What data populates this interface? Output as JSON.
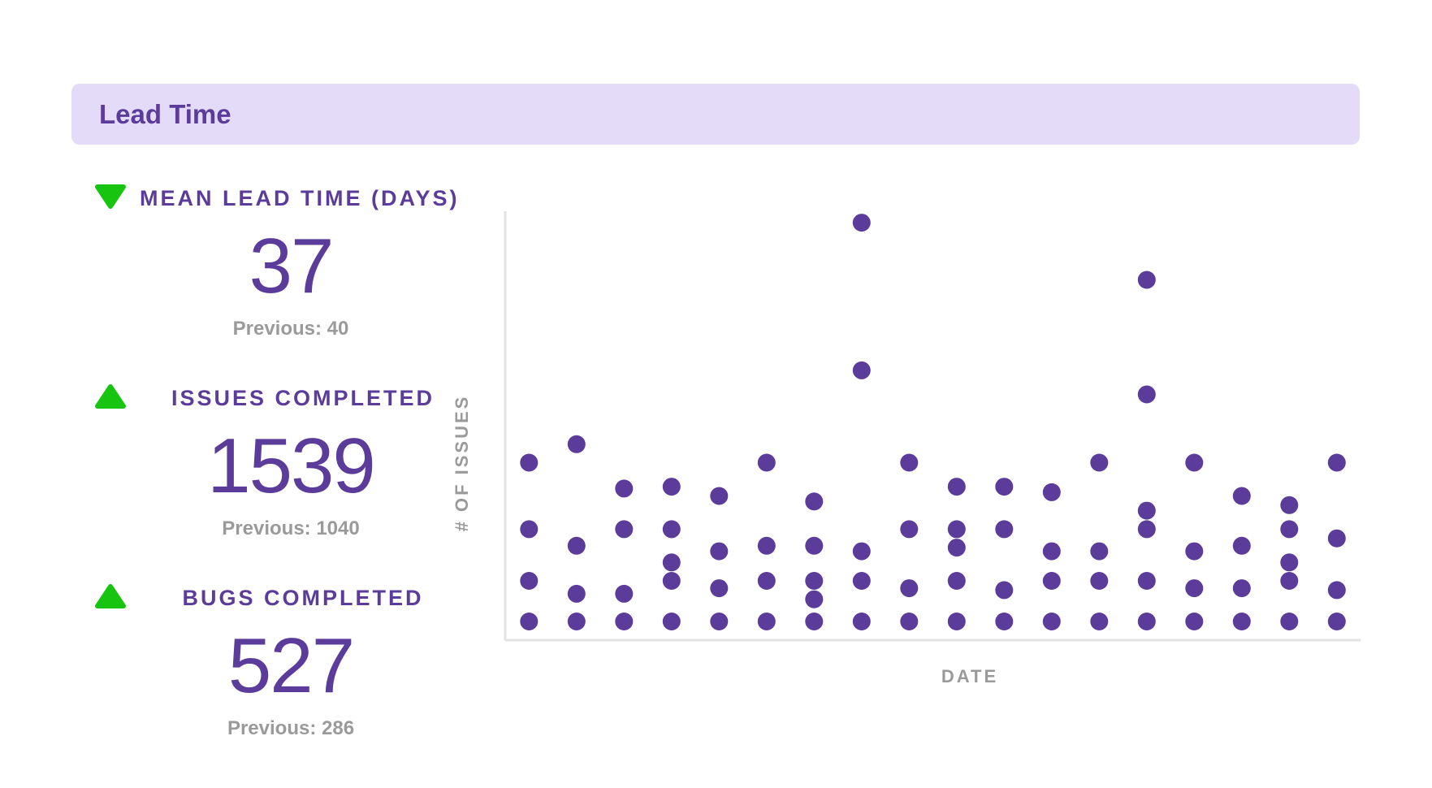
{
  "header": {
    "title": "Lead Time"
  },
  "colors": {
    "accent": "#5b3c9a",
    "header_bg": "#e4dbf8",
    "trend_good": "#17c40f",
    "muted": "#9a9a9a",
    "point": "#5b3c9a"
  },
  "metrics": [
    {
      "label": "MEAN LEAD TIME (DAYS)",
      "value": "37",
      "previous": "Previous: 40",
      "trend": "down",
      "icon": "triangle-down-icon"
    },
    {
      "label": "ISSUES COMPLETED",
      "value": "1539",
      "previous": "Previous: 1040",
      "trend": "up",
      "icon": "triangle-up-icon"
    },
    {
      "label": "BUGS COMPLETED",
      "value": "527",
      "previous": "Previous: 286",
      "trend": "up",
      "icon": "triangle-up-icon"
    }
  ],
  "chart_data": {
    "type": "scatter",
    "title": "",
    "xlabel": "DATE",
    "ylabel": "# OF ISSUES",
    "xlim": [
      0.5,
      18.5
    ],
    "ylim": [
      0,
      22
    ],
    "grid": false,
    "x_tick_labels": [],
    "y_tick_labels": [],
    "points": [
      {
        "x": 1,
        "y": 0
      },
      {
        "x": 1,
        "y": 2.2
      },
      {
        "x": 1,
        "y": 5
      },
      {
        "x": 1,
        "y": 8.6
      },
      {
        "x": 2,
        "y": 0
      },
      {
        "x": 2,
        "y": 1.5
      },
      {
        "x": 2,
        "y": 4.1
      },
      {
        "x": 2,
        "y": 9.6
      },
      {
        "x": 3,
        "y": 0
      },
      {
        "x": 3,
        "y": 1.5
      },
      {
        "x": 3,
        "y": 5
      },
      {
        "x": 3,
        "y": 7.2
      },
      {
        "x": 4,
        "y": 0
      },
      {
        "x": 4,
        "y": 2.2
      },
      {
        "x": 4,
        "y": 3.2
      },
      {
        "x": 4,
        "y": 5
      },
      {
        "x": 4,
        "y": 7.3
      },
      {
        "x": 5,
        "y": 0
      },
      {
        "x": 5,
        "y": 1.8
      },
      {
        "x": 5,
        "y": 3.8
      },
      {
        "x": 5,
        "y": 6.8
      },
      {
        "x": 6,
        "y": 0
      },
      {
        "x": 6,
        "y": 2.2
      },
      {
        "x": 6,
        "y": 4.1
      },
      {
        "x": 6,
        "y": 8.6
      },
      {
        "x": 7,
        "y": 0
      },
      {
        "x": 7,
        "y": 1.2
      },
      {
        "x": 7,
        "y": 2.2
      },
      {
        "x": 7,
        "y": 4.1
      },
      {
        "x": 7,
        "y": 6.5
      },
      {
        "x": 8,
        "y": 0
      },
      {
        "x": 8,
        "y": 2.2
      },
      {
        "x": 8,
        "y": 3.8
      },
      {
        "x": 8,
        "y": 13.6
      },
      {
        "x": 8,
        "y": 21.6
      },
      {
        "x": 9,
        "y": 0
      },
      {
        "x": 9,
        "y": 1.8
      },
      {
        "x": 9,
        "y": 5
      },
      {
        "x": 9,
        "y": 8.6
      },
      {
        "x": 10,
        "y": 0
      },
      {
        "x": 10,
        "y": 2.2
      },
      {
        "x": 10,
        "y": 4
      },
      {
        "x": 10,
        "y": 5
      },
      {
        "x": 10,
        "y": 7.3
      },
      {
        "x": 11,
        "y": 0
      },
      {
        "x": 11,
        "y": 1.7
      },
      {
        "x": 11,
        "y": 5
      },
      {
        "x": 11,
        "y": 7.3
      },
      {
        "x": 12,
        "y": 0
      },
      {
        "x": 12,
        "y": 2.2
      },
      {
        "x": 12,
        "y": 3.8
      },
      {
        "x": 12,
        "y": 7
      },
      {
        "x": 13,
        "y": 0
      },
      {
        "x": 13,
        "y": 2.2
      },
      {
        "x": 13,
        "y": 3.8
      },
      {
        "x": 13,
        "y": 8.6
      },
      {
        "x": 14,
        "y": 0
      },
      {
        "x": 14,
        "y": 2.2
      },
      {
        "x": 14,
        "y": 5
      },
      {
        "x": 14,
        "y": 6
      },
      {
        "x": 14,
        "y": 12.3
      },
      {
        "x": 14,
        "y": 18.5
      },
      {
        "x": 15,
        "y": 0
      },
      {
        "x": 15,
        "y": 1.8
      },
      {
        "x": 15,
        "y": 3.8
      },
      {
        "x": 15,
        "y": 8.6
      },
      {
        "x": 16,
        "y": 0
      },
      {
        "x": 16,
        "y": 1.8
      },
      {
        "x": 16,
        "y": 4.1
      },
      {
        "x": 16,
        "y": 6.8
      },
      {
        "x": 17,
        "y": 0
      },
      {
        "x": 17,
        "y": 2.2
      },
      {
        "x": 17,
        "y": 3.2
      },
      {
        "x": 17,
        "y": 5
      },
      {
        "x": 17,
        "y": 6.3
      },
      {
        "x": 18,
        "y": 0
      },
      {
        "x": 18,
        "y": 1.7
      },
      {
        "x": 18,
        "y": 4.5
      },
      {
        "x": 18,
        "y": 8.6
      }
    ]
  }
}
